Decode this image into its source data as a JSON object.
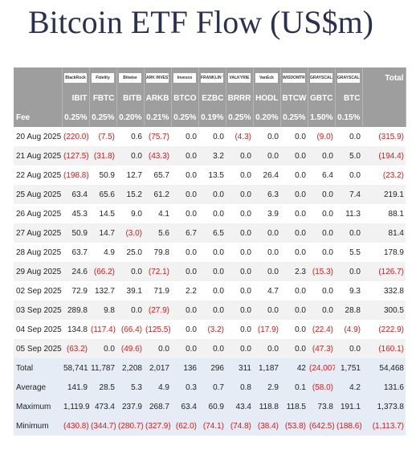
{
  "title": "Bitcoin ETF Flow (US$m)",
  "table": {
    "logos": [
      "BlackRock",
      "Fidelity",
      "Bitwise",
      "ARK INVEST",
      "Invesco",
      "FRANKLIN TEMPLETON",
      "VALKYRIE",
      "VanEck",
      "WISDOMTREE",
      "GRAYSCALE",
      "GRAYSCALE"
    ],
    "total_header": "Total",
    "tickers": [
      "IBIT",
      "FBTC",
      "BITB",
      "ARKB",
      "BTCO",
      "EZBC",
      "BRRR",
      "HODL",
      "BTCW",
      "GBTC",
      "BTC"
    ],
    "fee_label": "Fee",
    "fees": [
      "0.25%",
      "0.25%",
      "0.20%",
      "0.21%",
      "0.25%",
      "0.19%",
      "0.25%",
      "0.20%",
      "0.25%",
      "1.50%",
      "0.15%"
    ],
    "rows": [
      [
        "20 Aug 2025",
        "(220.0)",
        "(7.5)",
        "0.6",
        "(75.7)",
        "0.0",
        "0.0",
        "(4.3)",
        "0.0",
        "0.0",
        "(9.0)",
        "0.0",
        "(315.9)"
      ],
      [
        "21 Aug 2025",
        "(127.5)",
        "(31.8)",
        "0.0",
        "(43.3)",
        "0.0",
        "3.2",
        "0.0",
        "0.0",
        "0.0",
        "0.0",
        "5.0",
        "(194.4)"
      ],
      [
        "22 Aug 2025",
        "(198.8)",
        "50.9",
        "12.7",
        "65.7",
        "0.0",
        "13.5",
        "0.0",
        "26.4",
        "0.0",
        "6.4",
        "0.0",
        "(23.2)"
      ],
      [
        "25 Aug 2025",
        "63.4",
        "65.6",
        "15.2",
        "61.2",
        "0.0",
        "0.0",
        "0.0",
        "6.3",
        "0.0",
        "0.0",
        "7.4",
        "219.1"
      ],
      [
        "26 Aug 2025",
        "45.3",
        "14.5",
        "9.0",
        "4.1",
        "0.0",
        "0.0",
        "0.0",
        "3.9",
        "0.0",
        "0.0",
        "11.3",
        "88.1"
      ],
      [
        "27 Aug 2025",
        "50.9",
        "14.7",
        "(3.0)",
        "5.6",
        "6.7",
        "6.5",
        "0.0",
        "0.0",
        "0.0",
        "0.0",
        "0.0",
        "81.4"
      ],
      [
        "28 Aug 2025",
        "63.7",
        "4.9",
        "25.0",
        "79.8",
        "0.0",
        "0.0",
        "0.0",
        "0.0",
        "0.0",
        "0.0",
        "5.5",
        "178.9"
      ],
      [
        "29 Aug 2025",
        "24.6",
        "(66.2)",
        "0.0",
        "(72.1)",
        "0.0",
        "0.0",
        "0.0",
        "0.0",
        "2.3",
        "(15.3)",
        "0.0",
        "(126.7)"
      ],
      [
        "02 Sep 2025",
        "72.9",
        "132.7",
        "39.1",
        "71.9",
        "2.2",
        "0.0",
        "0.0",
        "4.7",
        "0.0",
        "0.0",
        "9.3",
        "332.8"
      ],
      [
        "03 Sep 2025",
        "289.8",
        "9.8",
        "0.0",
        "(27.9)",
        "0.0",
        "0.0",
        "0.0",
        "0.0",
        "0.0",
        "0.0",
        "28.8",
        "300.5"
      ],
      [
        "04 Sep 2025",
        "134.8",
        "(117.4)",
        "(66.4)",
        "(125.5)",
        "0.0",
        "(3.2)",
        "0.0",
        "(17.9)",
        "0.0",
        "(22.4)",
        "(4.9)",
        "(222.9)"
      ],
      [
        "05 Sep 2025",
        "(63.2)",
        "0.0",
        "(49.6)",
        "0.0",
        "0.0",
        "0.0",
        "0.0",
        "0.0",
        "0.0",
        "(47.3)",
        "0.0",
        "(160.1)"
      ]
    ],
    "summary": [
      [
        "Total",
        "58,741",
        "11,787",
        "2,208",
        "2,017",
        "136",
        "296",
        "311",
        "1,187",
        "42",
        "(24,007)",
        "1,751",
        "54,468"
      ],
      [
        "Average",
        "141.9",
        "28.5",
        "5.3",
        "4.9",
        "0.3",
        "0.7",
        "0.8",
        "2.9",
        "0.1",
        "(58.0)",
        "4.2",
        "131.6"
      ],
      [
        "Maximum",
        "1,119.9",
        "473.4",
        "237.9",
        "268.7",
        "63.4",
        "60.9",
        "43.4",
        "118.8",
        "118.5",
        "73.8",
        "191.1",
        "1,373.8"
      ],
      [
        "Minimum",
        "(430.8)",
        "(344.7)",
        "(280.7)",
        "(327.9)",
        "(62.0)",
        "(74.1)",
        "(74.8)",
        "(38.4)",
        "(53.8)",
        "(642.5)",
        "(188.6)",
        "(1,113.7)"
      ]
    ]
  }
}
